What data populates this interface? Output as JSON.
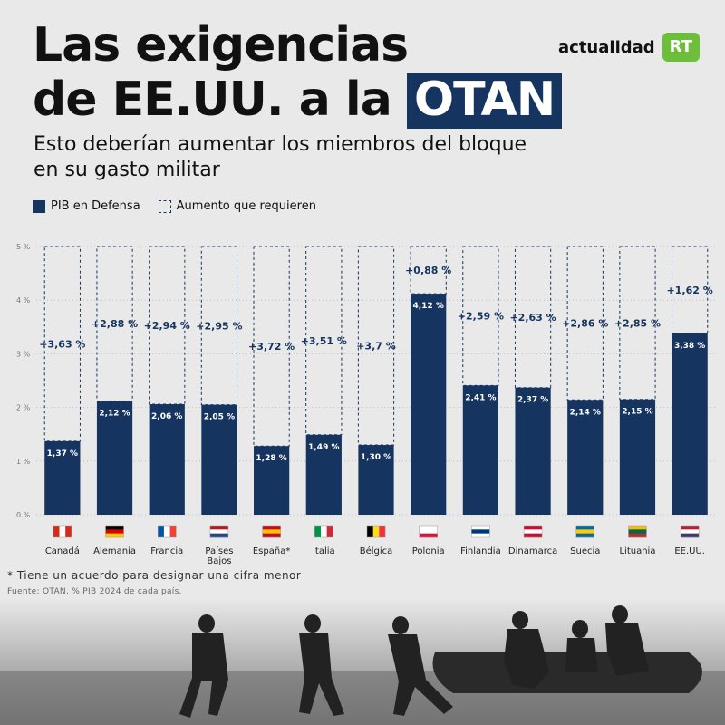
{
  "title_line1": "Las exigencias",
  "title_line2_pre": "de EE.UU. a la",
  "title_line2_hl": "OTAN",
  "subtitle": "Esto deberían aumentar los miembros del bloque en su gasto militar",
  "brand": {
    "text": "actualidad",
    "logo": "RT"
  },
  "legend": {
    "solid": "PIB en Defensa",
    "dashed": "Aumento que requieren"
  },
  "note": "* Tiene un acuerdo para designar una cifra menor",
  "source": "Fuente: OTAN. % PIB 2024 de cada país.",
  "colors": {
    "bar": "#15345f",
    "background": "#e9e9e9"
  },
  "chart_data": {
    "type": "bar",
    "categories": [
      "Canadá",
      "Alemania",
      "Francia",
      "Países Bajos",
      "España*",
      "Italia",
      "Bélgica",
      "Polonia",
      "Finlandia",
      "Dinamarca",
      "Suecia",
      "Lituania",
      "EE.UU."
    ],
    "flags": [
      "canada-flag-icon",
      "germany-flag-icon",
      "france-flag-icon",
      "netherlands-flag-icon",
      "spain-flag-icon",
      "italy-flag-icon",
      "belgium-flag-icon",
      "poland-flag-icon",
      "finland-flag-icon",
      "denmark-flag-icon",
      "sweden-flag-icon",
      "lithuania-flag-icon",
      "usa-flag-icon"
    ],
    "series": [
      {
        "name": "PIB en Defensa",
        "values": [
          1.37,
          2.12,
          2.06,
          2.05,
          1.28,
          1.49,
          1.3,
          4.12,
          2.41,
          2.37,
          2.14,
          2.15,
          3.38
        ],
        "labels": [
          "1,37 %",
          "2,12 %",
          "2,06 %",
          "2,05 %",
          "1,28 %",
          "1,49 %",
          "1,30 %",
          "4,12 %",
          "2,41 %",
          "2,37 %",
          "2,14 %",
          "2,15 %",
          "3,38 %"
        ]
      },
      {
        "name": "Aumento que requieren",
        "values": [
          3.63,
          2.88,
          2.94,
          2.95,
          3.72,
          3.51,
          3.7,
          0.88,
          2.59,
          2.63,
          2.86,
          2.85,
          1.62
        ],
        "labels": [
          "+3,63 %",
          "+2,88 %",
          "+2,94 %",
          "+2,95 %",
          "+3,72 %",
          "+3,51 %",
          "+3,7 %",
          "+0,88 %",
          "+2,59 %",
          "+2,63 %",
          "+2,86 %",
          "+2,85 %",
          "+1,62 %"
        ]
      }
    ],
    "yticks": [
      "0 %",
      "1 %",
      "2 %",
      "3 %",
      "4 %",
      "5 %"
    ],
    "ylim": [
      0,
      5
    ],
    "grid": true
  }
}
